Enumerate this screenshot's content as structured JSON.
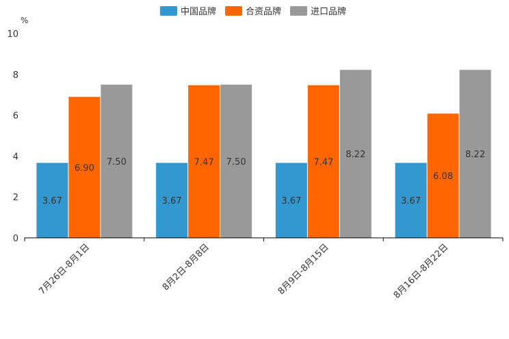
{
  "chart_data": {
    "type": "bar",
    "title": "",
    "xlabel": "",
    "ylabel": "%",
    "ylim": [
      0,
      10
    ],
    "yticks": [
      "0",
      "2",
      "4",
      "6",
      "8",
      "10"
    ],
    "grid": false,
    "legend_position": "top-center",
    "categories": [
      "7月26日-8月1日",
      "8月2日-8月8日",
      "8月9日-8月15日",
      "8月16日-8月22日"
    ],
    "series": [
      {
        "name": "中国品牌",
        "color": "#3398d0",
        "values": [
          3.67,
          3.67,
          3.67,
          3.67
        ],
        "labels": [
          "3.67",
          "3.67",
          "3.67",
          "3.67"
        ]
      },
      {
        "name": "合资品牌",
        "color": "#ff6600",
        "values": [
          6.9,
          7.47,
          7.47,
          6.08
        ],
        "labels": [
          "6.90",
          "7.47",
          "7.47",
          "6.08"
        ]
      },
      {
        "name": "进口品牌",
        "color": "#999999",
        "values": [
          7.5,
          7.5,
          8.22,
          8.22
        ],
        "labels": [
          "7.50",
          "7.50",
          "8.22",
          "8.22"
        ]
      }
    ]
  }
}
